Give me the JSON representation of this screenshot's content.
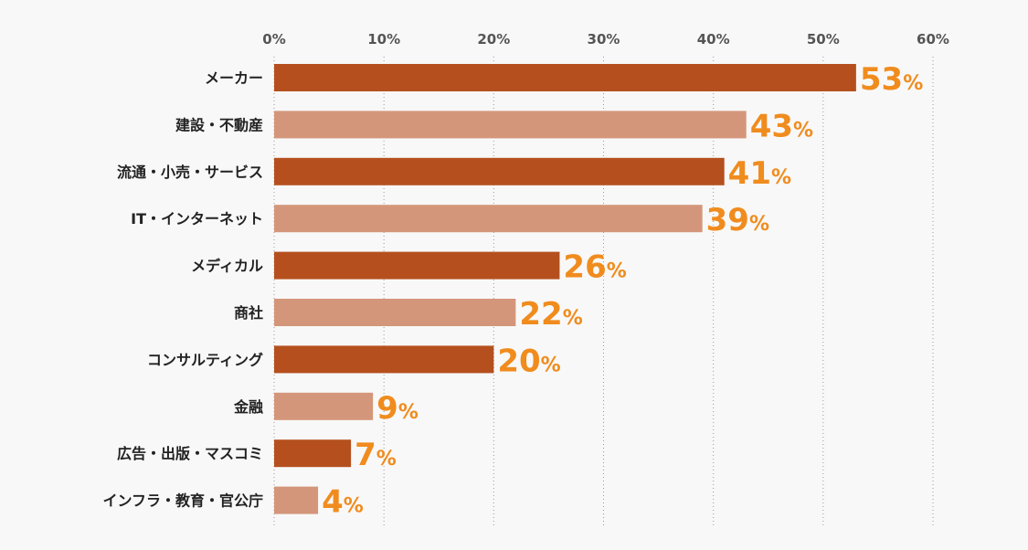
{
  "chart_data": {
    "type": "bar",
    "orientation": "horizontal",
    "categories": [
      "メーカー",
      "建設・不動産",
      "流通・小売・サービス",
      "IT・インターネット",
      "メディカル",
      "商社",
      "コンサルティング",
      "金融",
      "広告・出版・マスコミ",
      "インフラ・教育・官公庁"
    ],
    "values": [
      53,
      43,
      41,
      39,
      26,
      22,
      20,
      9,
      7,
      4
    ],
    "value_labels": [
      "53",
      "43",
      "41",
      "39",
      "26",
      "22",
      "20",
      "9",
      "7",
      "4"
    ],
    "value_suffix": "%",
    "xlim": [
      0,
      60
    ],
    "xticks": [
      "0%",
      "10%",
      "20%",
      "30%",
      "40%",
      "50%",
      "60%"
    ],
    "grid": true,
    "colors": {
      "dark": "#b5501e",
      "light": "#d4967a",
      "label": "#f08c1e",
      "background": "#f8f8f8"
    },
    "bar_color_pattern": [
      "dark",
      "light",
      "dark",
      "light",
      "dark",
      "light",
      "dark",
      "light",
      "dark",
      "light"
    ]
  }
}
